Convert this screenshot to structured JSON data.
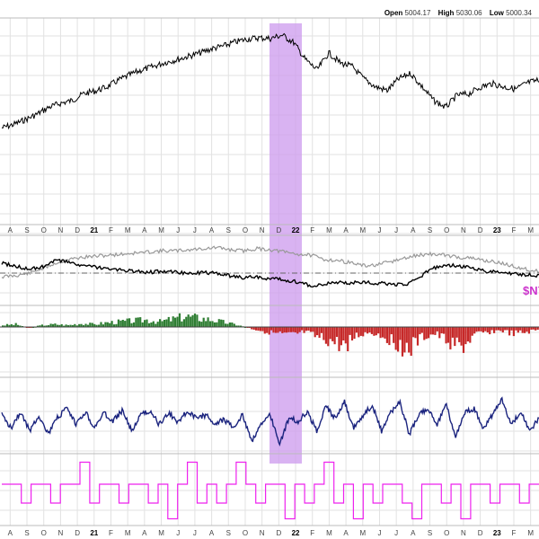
{
  "header": {
    "open_label": "Open",
    "open_value": "5004.17",
    "high_label": "High",
    "high_value": "5030.06",
    "low_label": "Low",
    "low_value": "5000.34"
  },
  "symbol_label": "$NY",
  "colors": {
    "price": "#000000",
    "ratio_gray": "#999999",
    "ratio_black": "#000000",
    "hist_up": "#2e7d32",
    "hist_down": "#c62828",
    "oscillator": "#1a237e",
    "signal": "#ee22ee",
    "highlight": "#cc99ee",
    "grid": "#e2e2e2"
  },
  "chart_data": {
    "type": "line",
    "x_axis": {
      "months": [
        {
          "label": "A",
          "year": false
        },
        {
          "label": "S",
          "year": false
        },
        {
          "label": "O",
          "year": false
        },
        {
          "label": "N",
          "year": false
        },
        {
          "label": "D",
          "year": false
        },
        {
          "label": "21",
          "year": true
        },
        {
          "label": "F",
          "year": false
        },
        {
          "label": "M",
          "year": false
        },
        {
          "label": "A",
          "year": false
        },
        {
          "label": "M",
          "year": false
        },
        {
          "label": "J",
          "year": false
        },
        {
          "label": "J",
          "year": false
        },
        {
          "label": "A",
          "year": false
        },
        {
          "label": "S",
          "year": false
        },
        {
          "label": "O",
          "year": false
        },
        {
          "label": "N",
          "year": false
        },
        {
          "label": "D",
          "year": false
        },
        {
          "label": "22",
          "year": true
        },
        {
          "label": "F",
          "year": false
        },
        {
          "label": "M",
          "year": false
        },
        {
          "label": "A",
          "year": false
        },
        {
          "label": "M",
          "year": false
        },
        {
          "label": "J",
          "year": false
        },
        {
          "label": "J",
          "year": false
        },
        {
          "label": "A",
          "year": false
        },
        {
          "label": "S",
          "year": false
        },
        {
          "label": "O",
          "year": false
        },
        {
          "label": "N",
          "year": false
        },
        {
          "label": "D",
          "year": false
        },
        {
          "label": "23",
          "year": true
        },
        {
          "label": "F",
          "year": false
        },
        {
          "label": "M",
          "year": false
        }
      ]
    },
    "highlight_range": [
      "Nov 2021",
      "Jan 2022"
    ],
    "panels": [
      {
        "name": "price",
        "type": "line",
        "series": [
          {
            "values": [
              3400,
              3450,
              3520,
              3600,
              3700,
              3760,
              3800,
              3900,
              3940,
              4000,
              4100,
              4180,
              4250,
              4300,
              4360,
              4400,
              4450,
              4500,
              4560,
              4600,
              4660,
              4700,
              4720,
              4710,
              4760,
              4650,
              4400,
              4250,
              4500,
              4350,
              4300,
              4120,
              4000,
              3950,
              4120,
              4200,
              4000,
              3800,
              3700,
              3880,
              3900,
              4000,
              4050,
              4000,
              3970,
              4060,
              4100
            ]
          }
        ]
      },
      {
        "name": "ratio",
        "type": "line",
        "series": [
          {
            "color": "gray",
            "values": [
              0.3,
              0.32,
              0.36,
              0.45,
              0.55,
              0.62,
              0.66,
              0.68,
              0.7,
              0.72,
              0.74,
              0.76,
              0.78,
              0.78,
              0.8,
              0.82,
              0.84,
              0.8,
              0.78,
              0.82,
              0.8,
              0.76,
              0.72,
              0.7,
              0.62,
              0.6,
              0.56,
              0.5,
              0.52,
              0.58,
              0.64,
              0.7,
              0.72,
              0.7,
              0.66,
              0.64,
              0.6,
              0.56,
              0.5,
              0.44,
              0.4
            ]
          },
          {
            "color": "black",
            "values": [
              0.55,
              0.5,
              0.44,
              0.48,
              0.6,
              0.58,
              0.5,
              0.48,
              0.44,
              0.42,
              0.4,
              0.38,
              0.4,
              0.38,
              0.36,
              0.38,
              0.36,
              0.32,
              0.28,
              0.3,
              0.26,
              0.24,
              0.2,
              0.14,
              0.16,
              0.2,
              0.18,
              0.2,
              0.18,
              0.16,
              0.14,
              0.28,
              0.44,
              0.52,
              0.5,
              0.46,
              0.4,
              0.38,
              0.36,
              0.34,
              0.32
            ]
          }
        ]
      },
      {
        "name": "histogram",
        "type": "bar",
        "series": [
          {
            "values": [
              0.2,
              0.3,
              -0.1,
              0.2,
              0.3,
              0.2,
              0.4,
              0.3,
              0.5,
              0.6,
              0.7,
              0.8,
              0.6,
              0.9,
              1.2,
              1.0,
              0.8,
              0.5,
              0.2,
              -0.2,
              -0.5,
              -0.8,
              -1.0,
              -0.6,
              -1.2,
              -1.6,
              -2.2,
              -1.0,
              -0.6,
              -1.0,
              -1.8,
              -2.6,
              -1.2,
              -0.8,
              -1.6,
              -2.4,
              -1.0,
              -0.6,
              -0.4,
              -0.8,
              -0.6,
              -0.3
            ]
          }
        ]
      },
      {
        "name": "oscillator",
        "type": "line",
        "series": [
          {
            "values": [
              0.55,
              0.35,
              0.6,
              0.3,
              0.55,
              0.25,
              0.5,
              0.65,
              0.4,
              0.6,
              0.35,
              0.58,
              0.45,
              0.62,
              0.3,
              0.55,
              0.62,
              0.4,
              0.58,
              0.45,
              0.6,
              0.5,
              0.55,
              0.42,
              0.48,
              0.35,
              0.55,
              0.15,
              0.4,
              0.55,
              0.1,
              0.5,
              0.45,
              0.6,
              0.3,
              0.68,
              0.5,
              0.75,
              0.35,
              0.55,
              0.7,
              0.3,
              0.6,
              0.75,
              0.25,
              0.55,
              0.65,
              0.4,
              0.7,
              0.2,
              0.6,
              0.65,
              0.35,
              0.55,
              0.8,
              0.4,
              0.6,
              0.3,
              0.5
            ]
          }
        ]
      },
      {
        "name": "signal",
        "type": "line",
        "series": [
          {
            "values": [
              0.6,
              0.6,
              0.3,
              0.6,
              0.6,
              0.3,
              0.6,
              0.6,
              0.95,
              0.3,
              0.6,
              0.6,
              0.3,
              0.6,
              0.6,
              0.3,
              0.6,
              0.05,
              0.6,
              0.95,
              0.3,
              0.6,
              0.3,
              0.6,
              0.95,
              0.6,
              0.3,
              0.6,
              0.6,
              0.05,
              0.6,
              0.3,
              0.6,
              0.95,
              0.3,
              0.6,
              0.05,
              0.6,
              0.3,
              0.6,
              0.6,
              0.3,
              0.05,
              0.6,
              0.6,
              0.3,
              0.6,
              0.05,
              0.6,
              0.6,
              0.3,
              0.6,
              0.6,
              0.3,
              0.6
            ]
          }
        ]
      }
    ]
  }
}
